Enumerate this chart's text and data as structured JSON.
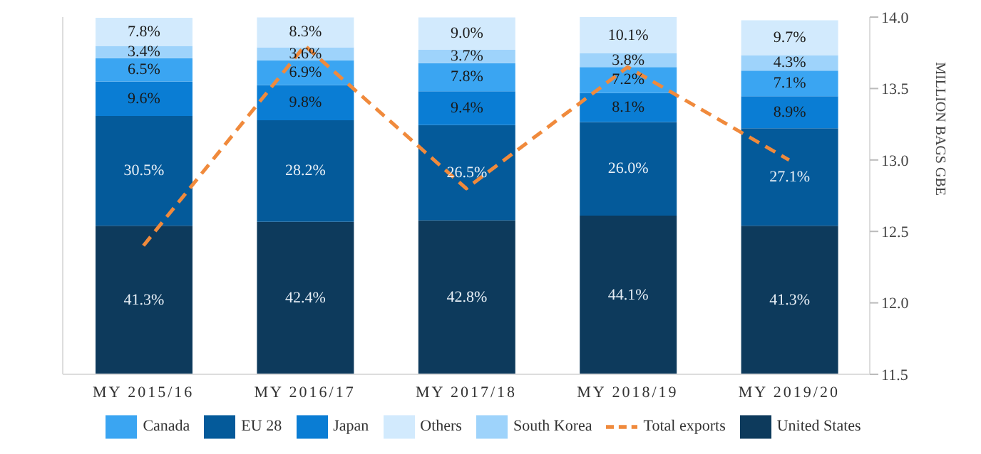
{
  "chart_data": {
    "type": "bar",
    "stacked": true,
    "categories": [
      "MY 2015/16",
      "MY 2016/17",
      "MY 2017/18",
      "MY 2018/19",
      "MY 2019/20"
    ],
    "y2label": "MILLION BAGS GBE",
    "y2lim": [
      11.5,
      14.0
    ],
    "y2ticks": [
      {
        "value": 11.5,
        "label": "11.5"
      },
      {
        "value": 12.0,
        "label": "12.0"
      },
      {
        "value": 12.5,
        "label": "12.5"
      },
      {
        "value": 13.0,
        "label": "13.0"
      },
      {
        "value": 13.5,
        "label": "13.5"
      },
      {
        "value": 14.0,
        "label": "14.0"
      }
    ],
    "grid": false,
    "legend": "bottom",
    "series": [
      {
        "name": "United States",
        "color": "#0d3a5c",
        "values": [
          41.3,
          42.4,
          42.8,
          44.1,
          41.3
        ],
        "value_labels": [
          "41.3%",
          "42.4%",
          "42.8%",
          "44.1%",
          "41.3%"
        ]
      },
      {
        "name": "EU 28",
        "color": "#045a9a",
        "values": [
          30.5,
          28.2,
          26.5,
          26.0,
          27.1
        ],
        "value_labels": [
          "30.5%",
          "28.2%",
          "26.5%",
          "26.0%",
          "27.1%"
        ]
      },
      {
        "name": "Japan",
        "color": "#0a7dd4",
        "values": [
          9.6,
          9.8,
          9.4,
          8.1,
          8.9
        ],
        "value_labels": [
          "9.6%",
          "9.8%",
          "9.4%",
          "8.1%",
          "8.9%"
        ]
      },
      {
        "name": "Canada",
        "color": "#3aa5f2",
        "values": [
          6.5,
          6.9,
          7.8,
          7.2,
          7.1
        ],
        "value_labels": [
          "6.5%",
          "6.9%",
          "7.8%",
          "7.2%",
          "7.1%"
        ]
      },
      {
        "name": "South Korea",
        "color": "#9ed3fb",
        "values": [
          3.4,
          3.6,
          3.7,
          3.8,
          4.3
        ],
        "value_labels": [
          "3.4%",
          "3.6%",
          "3.7%",
          "3.8%",
          "4.3%"
        ]
      },
      {
        "name": "Others",
        "color": "#d2eafd",
        "values": [
          7.8,
          8.3,
          9.0,
          10.1,
          9.7
        ],
        "value_labels": [
          "7.8%",
          "8.3%",
          "9.0%",
          "10.1%",
          "9.7%"
        ]
      },
      {
        "name": "Total exports",
        "type": "line",
        "axis": "y2",
        "color": "#f08a3c",
        "line_style": "dashed",
        "marker": "none",
        "values": [
          12.4,
          13.8,
          12.8,
          13.65,
          13.0
        ]
      }
    ]
  }
}
